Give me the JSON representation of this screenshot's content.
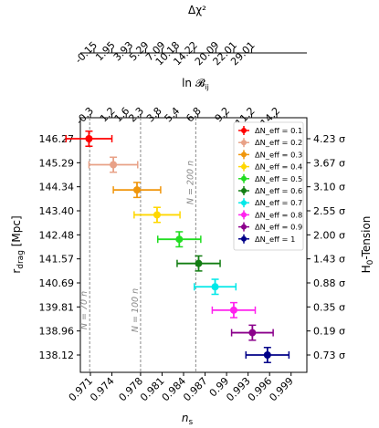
{
  "chart_data": {
    "type": "scatter",
    "title": "",
    "xlabel": "n_s",
    "ylabel_left": "r_drag [Mpc]",
    "ylabel_right": "H_0-Tension",
    "top_axis_1_label": "ln B_ij",
    "top_axis_2_label": "Δχ²",
    "xlim": [
      0.9696,
      1.0012
    ],
    "x_ticks": [
      "0.971",
      "0.974",
      "0.978",
      "0.981",
      "0.984",
      "0.987",
      "0.99",
      "0.993",
      "0.996",
      "0.999"
    ],
    "x_tick_values": [
      0.971,
      0.974,
      0.978,
      0.981,
      0.984,
      0.987,
      0.99,
      0.993,
      0.996,
      0.999
    ],
    "y_ticks_left": [
      "146.27",
      "145.29",
      "144.34",
      "143.40",
      "142.48",
      "141.57",
      "140.69",
      "139.81",
      "138.96",
      "138.12"
    ],
    "y_ticks_right": [
      "4.23 σ",
      "3.67 σ",
      "3.10 σ",
      "2.55 σ",
      "2.00 σ",
      "1.43 σ",
      "0.88 σ",
      "0.35 σ",
      "0.19 σ",
      "0.73 σ"
    ],
    "top_ticks_lnB": [
      "-0.3",
      "1.2",
      "1.6",
      "2.3",
      "3.8",
      "5.4",
      "6.8",
      "9.2",
      "11.2",
      "14.2"
    ],
    "top_ticks_lnB_at": [
      0.971,
      0.974,
      0.976,
      0.978,
      0.9805,
      0.983,
      0.986,
      0.99,
      0.9935,
      0.997
    ],
    "top_ticks_chi2": [
      "-0.15",
      "1.95",
      "3.93",
      "5.29",
      "7.09",
      "10.18",
      "14.22",
      "20.09",
      "22.01",
      "29.01"
    ],
    "top_ticks_chi2_at": [
      0.9715,
      0.974,
      0.9765,
      0.9787,
      0.981,
      0.983,
      0.9855,
      0.9885,
      0.991,
      0.9935
    ],
    "series": [
      {
        "name": "ΔN_eff = 0.1",
        "x": 0.9708,
        "y": 146.27,
        "xerr": 0.0032,
        "yerr": 0.18,
        "color": "#ff0000"
      },
      {
        "name": "ΔN_eff = 0.2",
        "x": 0.9742,
        "y": 145.29,
        "xerr": 0.0034,
        "yerr": 0.18,
        "color": "#e8a187"
      },
      {
        "name": "ΔN_eff = 0.3",
        "x": 0.9775,
        "y": 144.34,
        "xerr": 0.0033,
        "yerr": 0.18,
        "color": "#f0960c"
      },
      {
        "name": "ΔN_eff = 0.4",
        "x": 0.9803,
        "y": 143.4,
        "xerr": 0.0032,
        "yerr": 0.18,
        "color": "#ffd700"
      },
      {
        "name": "ΔN_eff = 0.5",
        "x": 0.9834,
        "y": 142.48,
        "xerr": 0.003,
        "yerr": 0.18,
        "color": "#22dd22"
      },
      {
        "name": "ΔN_eff = 0.6",
        "x": 0.9861,
        "y": 141.57,
        "xerr": 0.003,
        "yerr": 0.18,
        "color": "#127d12"
      },
      {
        "name": "ΔN_eff = 0.7",
        "x": 0.9884,
        "y": 140.69,
        "xerr": 0.0029,
        "yerr": 0.18,
        "color": "#00e8e8"
      },
      {
        "name": "ΔN_eff = 0.8",
        "x": 0.991,
        "y": 139.81,
        "xerr": 0.003,
        "yerr": 0.18,
        "color": "#ff22ee"
      },
      {
        "name": "ΔN_eff = 0.9",
        "x": 0.9936,
        "y": 138.96,
        "xerr": 0.0029,
        "yerr": 0.18,
        "color": "#8b008b"
      },
      {
        "name": "ΔN_eff = 1",
        "x": 0.9957,
        "y": 138.12,
        "xerr": 0.003,
        "yerr": 0.18,
        "color": "#000088"
      }
    ],
    "vlines": [
      {
        "label": "N = 70 n",
        "x": 0.9709
      },
      {
        "label": "N = 100 n",
        "x": 0.978
      },
      {
        "label": "N = 200 n",
        "x": 0.9857
      }
    ],
    "legend_position": "top-right",
    "grid": false
  }
}
